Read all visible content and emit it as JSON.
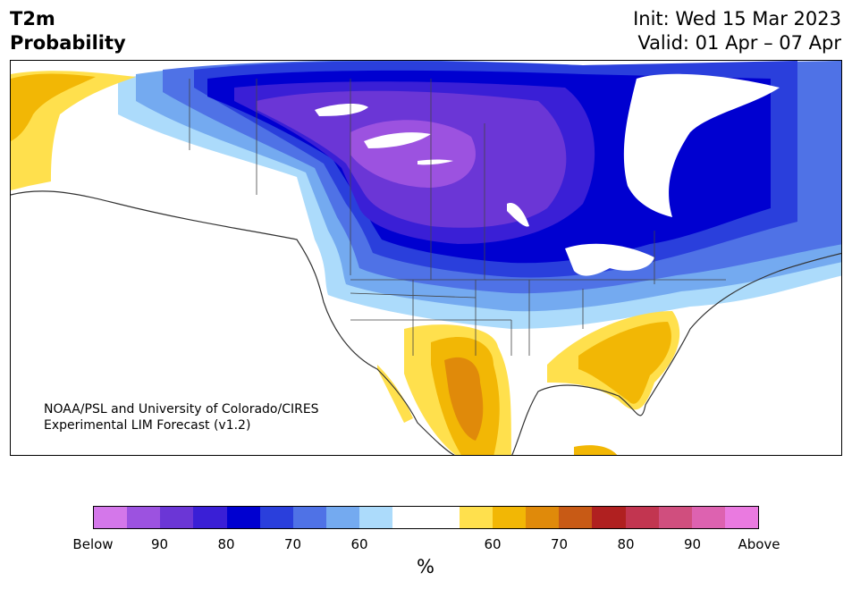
{
  "header": {
    "variable": "T2m",
    "product": "Probability",
    "init": "Init: Wed 15 Mar 2023",
    "valid": "Valid: 01 Apr – 07 Apr"
  },
  "credit": {
    "line1": "NOAA/PSL and University of Colorado/CIRES",
    "line2": "Experimental LIM Forecast (v1.2)"
  },
  "colorbar": {
    "label": "%",
    "colors": [
      "#d477ea",
      "#9c52e0",
      "#6b36d6",
      "#3a1fd6",
      "#0000d0",
      "#2a3fdc",
      "#4f72e6",
      "#74aaf0",
      "#acdbfb",
      "#ffffff",
      "#ffffff",
      "#ffe04d",
      "#f2b705",
      "#e08a0a",
      "#c85a15",
      "#b02020",
      "#c23550",
      "#d04e7e",
      "#dd62b0",
      "#ea7ae0"
    ],
    "ticks": [
      "Below",
      "90",
      "80",
      "70",
      "60",
      "60",
      "70",
      "80",
      "90",
      "Above"
    ]
  }
}
